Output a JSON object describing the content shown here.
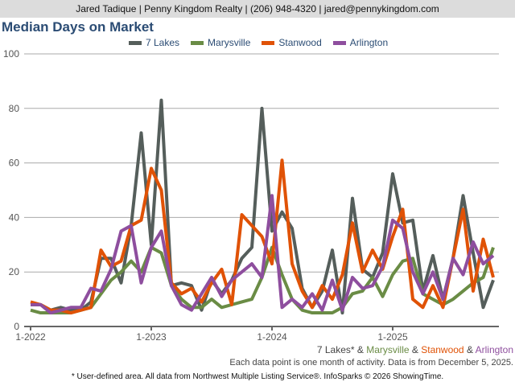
{
  "header": "Jared Tadique | Penny Kingdom Realty | (206) 948-4320 | jared@pennykingdom.com",
  "footer": {
    "note": "Each data point is one month of activity. Data is from December 5, 2025.",
    "source": "* User-defined area. All data from Northwest Multiple Listing Service®. InfoSparks © 2026 ShowingTime.",
    "amp": " & "
  },
  "chart_data": {
    "type": "line",
    "title": "Median Days on Market",
    "xlabel": "",
    "ylabel": "",
    "ylim": [
      0,
      100
    ],
    "yticks": [
      0,
      20,
      40,
      60,
      80,
      100
    ],
    "xticks": [
      {
        "label": "1-2022",
        "index": 0
      },
      {
        "label": "1-2023",
        "index": 12
      },
      {
        "label": "1-2024",
        "index": 24
      },
      {
        "label": "1-2025",
        "index": 36
      }
    ],
    "x_start": "1-2022",
    "x_end": "11-2025",
    "legend_position": "top",
    "series": [
      {
        "name": "7 Lakes",
        "label": "7 Lakes*",
        "color": "#555e5b",
        "values": [
          8,
          8,
          6,
          7,
          6,
          6,
          9,
          25,
          25,
          16,
          37,
          71,
          30,
          83,
          15,
          16,
          15,
          6,
          17,
          12,
          17,
          25,
          29,
          80,
          35,
          42,
          36,
          14,
          7,
          13,
          28,
          5,
          47,
          21,
          18,
          27,
          56,
          38,
          39,
          13,
          26,
          10,
          25,
          48,
          27,
          7,
          17
        ]
      },
      {
        "name": "Marysville",
        "label": "Marysville",
        "color": "#6a8c45",
        "values": [
          6,
          5,
          5,
          5,
          5,
          6,
          7,
          12,
          17,
          20,
          24,
          20,
          29,
          27,
          15,
          10,
          7,
          7,
          10,
          7,
          8,
          9,
          10,
          18,
          29,
          19,
          10,
          6,
          5,
          5,
          5,
          7,
          12,
          13,
          18,
          11,
          19,
          24,
          25,
          12,
          10,
          8,
          10,
          13,
          16,
          18,
          29
        ]
      },
      {
        "name": "Stanwood",
        "label": "Stanwood",
        "color": "#e05206",
        "values": [
          9,
          8,
          6,
          6,
          5,
          6,
          7,
          28,
          22,
          24,
          37,
          39,
          58,
          50,
          16,
          12,
          14,
          9,
          16,
          21,
          8,
          41,
          37,
          33,
          23,
          61,
          23,
          13,
          7,
          15,
          10,
          19,
          38,
          20,
          28,
          21,
          33,
          43,
          10,
          7,
          15,
          7,
          25,
          43,
          13,
          32,
          18
        ]
      },
      {
        "name": "Arlington",
        "label": "Arlington",
        "color": "#8e4e9e",
        "values": [
          8,
          8,
          5,
          6,
          7,
          7,
          14,
          13,
          21,
          35,
          37,
          16,
          29,
          35,
          15,
          8,
          6,
          12,
          18,
          11,
          17,
          20,
          23,
          18,
          48,
          7,
          10,
          7,
          12,
          6,
          17,
          6,
          18,
          14,
          15,
          22,
          39,
          36,
          20,
          12,
          20,
          10,
          25,
          19,
          31,
          23,
          26
        ]
      }
    ]
  }
}
